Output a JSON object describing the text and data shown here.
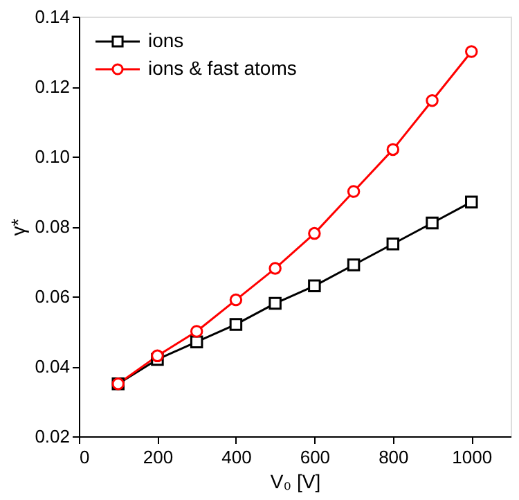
{
  "chart_data": {
    "type": "line",
    "xlabel": "V₀ [V]",
    "ylabel": "γ*",
    "x": [
      100,
      200,
      300,
      400,
      500,
      600,
      700,
      800,
      900,
      1000
    ],
    "series": [
      {
        "name": "ions",
        "color": "#000000",
        "marker": "square",
        "values": [
          0.035,
          0.042,
          0.047,
          0.052,
          0.058,
          0.063,
          0.069,
          0.075,
          0.081,
          0.087
        ]
      },
      {
        "name": "ions & fast atoms",
        "color": "#ff0000",
        "marker": "circle",
        "values": [
          0.035,
          0.043,
          0.05,
          0.059,
          0.068,
          0.078,
          0.09,
          0.102,
          0.116,
          0.13
        ]
      }
    ],
    "xlim": [
      0,
      1100
    ],
    "xticks": [
      0,
      200,
      400,
      600,
      800,
      1000
    ],
    "ylim": [
      0.02,
      0.14
    ],
    "yticks": [
      0.02,
      0.04,
      0.06,
      0.08,
      {
        "value": 0.1,
        "label": "0.10"
      },
      0.12,
      0.14
    ],
    "grid": false,
    "legend": "top left",
    "line_style": "solid"
  }
}
